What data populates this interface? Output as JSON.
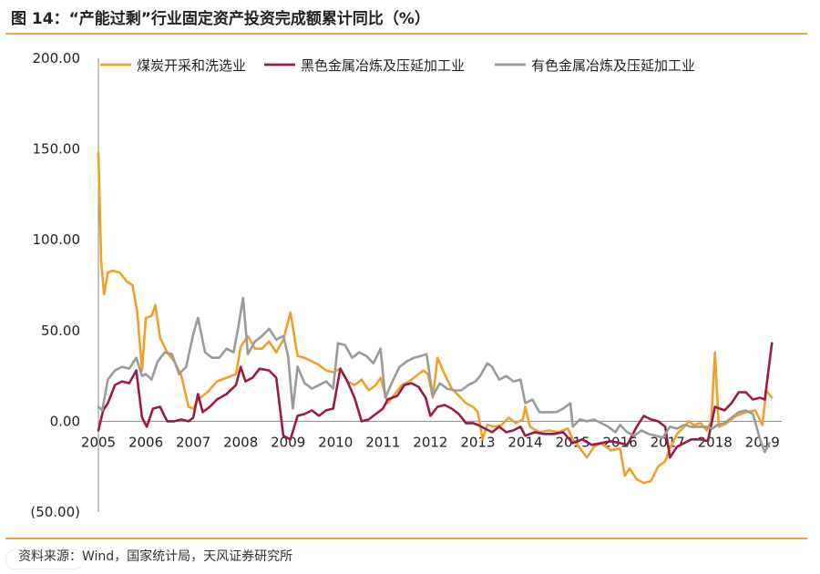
{
  "header": {
    "title": "图 14：“产能过剩”行业固定资产投资完成额累计同比（%）"
  },
  "footer": {
    "source": "资料来源：Wind，国家统计局，天风证券研究所"
  },
  "chart_data": {
    "type": "line",
    "title": "“产能过剩”行业固定资产投资完成额累计同比（%）",
    "xlabel": "",
    "ylabel": "",
    "xlim": [
      2005,
      2019.35
    ],
    "ylim": [
      -50,
      200
    ],
    "yticks": [
      200,
      150,
      100,
      50,
      0,
      -50
    ],
    "ytick_labels": [
      "200.00",
      "150.00",
      "100.00",
      "50.00",
      "0.00",
      "(50.00)"
    ],
    "xticks": [
      2005,
      2006,
      2007,
      2008,
      2009,
      2010,
      2011,
      2012,
      2013,
      2014,
      2015,
      2016,
      2017,
      2018,
      2019
    ],
    "xtick_labels": [
      "2005",
      "2006",
      "2007",
      "2008",
      "2009",
      "2010",
      "2011",
      "2012",
      "2013",
      "2014",
      "2015",
      "2016",
      "2017",
      "2018",
      "2019"
    ],
    "legend_position": "top",
    "series": [
      {
        "name": "煤炭开采和洗选业",
        "color": "#f0a02a",
        "points": [
          [
            2005.0,
            148
          ],
          [
            2005.06,
            88
          ],
          [
            2005.12,
            70
          ],
          [
            2005.2,
            82
          ],
          [
            2005.3,
            83
          ],
          [
            2005.45,
            82
          ],
          [
            2005.6,
            77
          ],
          [
            2005.72,
            75
          ],
          [
            2005.82,
            60
          ],
          [
            2005.92,
            28
          ],
          [
            2006.0,
            57
          ],
          [
            2006.12,
            58
          ],
          [
            2006.2,
            64
          ],
          [
            2006.3,
            46
          ],
          [
            2006.45,
            38
          ],
          [
            2006.6,
            33
          ],
          [
            2006.75,
            25
          ],
          [
            2006.9,
            8
          ],
          [
            2007.0,
            7
          ],
          [
            2007.1,
            12
          ],
          [
            2007.3,
            16
          ],
          [
            2007.5,
            22
          ],
          [
            2007.7,
            24
          ],
          [
            2007.9,
            26
          ],
          [
            2008.0,
            41
          ],
          [
            2008.15,
            47
          ],
          [
            2008.3,
            40
          ],
          [
            2008.45,
            40
          ],
          [
            2008.6,
            44
          ],
          [
            2008.75,
            38
          ],
          [
            2008.9,
            45
          ],
          [
            2009.05,
            60
          ],
          [
            2009.2,
            36
          ],
          [
            2009.35,
            35
          ],
          [
            2009.5,
            33
          ],
          [
            2009.65,
            31
          ],
          [
            2009.8,
            28
          ],
          [
            2009.95,
            27
          ],
          [
            2010.1,
            29
          ],
          [
            2010.25,
            22
          ],
          [
            2010.4,
            20
          ],
          [
            2010.55,
            23
          ],
          [
            2010.7,
            17
          ],
          [
            2010.85,
            20
          ],
          [
            2010.95,
            24
          ],
          [
            2011.1,
            10
          ],
          [
            2011.25,
            15
          ],
          [
            2011.4,
            20
          ],
          [
            2011.55,
            22
          ],
          [
            2011.7,
            25
          ],
          [
            2011.85,
            28
          ],
          [
            2011.95,
            26
          ],
          [
            2012.05,
            13
          ],
          [
            2012.15,
            35
          ],
          [
            2012.3,
            26
          ],
          [
            2012.45,
            18
          ],
          [
            2012.6,
            14
          ],
          [
            2012.75,
            10
          ],
          [
            2012.9,
            8
          ],
          [
            2013.0,
            5
          ],
          [
            2013.1,
            -10
          ],
          [
            2013.2,
            -2
          ],
          [
            2013.35,
            -3
          ],
          [
            2013.5,
            -2
          ],
          [
            2013.65,
            2
          ],
          [
            2013.8,
            -1
          ],
          [
            2013.95,
            1
          ],
          [
            2014.0,
            8
          ],
          [
            2014.1,
            -3
          ],
          [
            2014.3,
            -6
          ],
          [
            2014.5,
            -5
          ],
          [
            2014.7,
            -6
          ],
          [
            2014.9,
            -4
          ],
          [
            2015.0,
            -10
          ],
          [
            2015.1,
            -13
          ],
          [
            2015.3,
            -20
          ],
          [
            2015.45,
            -14
          ],
          [
            2015.6,
            -12
          ],
          [
            2015.8,
            -16
          ],
          [
            2016.0,
            -15
          ],
          [
            2016.1,
            -30
          ],
          [
            2016.2,
            -26
          ],
          [
            2016.35,
            -32
          ],
          [
            2016.5,
            -34
          ],
          [
            2016.65,
            -33
          ],
          [
            2016.8,
            -25
          ],
          [
            2016.95,
            -22
          ],
          [
            2017.05,
            -15
          ],
          [
            2017.2,
            -7
          ],
          [
            2017.35,
            -3
          ],
          [
            2017.45,
            0
          ],
          [
            2017.55,
            -2
          ],
          [
            2017.7,
            -1
          ],
          [
            2017.82,
            -5
          ],
          [
            2017.92,
            0
          ],
          [
            2018.0,
            38
          ],
          [
            2018.08,
            -3
          ],
          [
            2018.25,
            -1
          ],
          [
            2018.45,
            3
          ],
          [
            2018.65,
            5
          ],
          [
            2018.85,
            6
          ],
          [
            2019.0,
            -2
          ],
          [
            2019.08,
            17
          ],
          [
            2019.2,
            13
          ]
        ]
      },
      {
        "name": "黑色金属冶炼及压延加工业",
        "color": "#9b1a48",
        "points": [
          [
            2005.0,
            -5
          ],
          [
            2005.1,
            6
          ],
          [
            2005.2,
            10
          ],
          [
            2005.35,
            20
          ],
          [
            2005.5,
            22
          ],
          [
            2005.65,
            21
          ],
          [
            2005.8,
            28
          ],
          [
            2005.92,
            2
          ],
          [
            2006.02,
            -3
          ],
          [
            2006.15,
            7
          ],
          [
            2006.3,
            8
          ],
          [
            2006.45,
            0
          ],
          [
            2006.6,
            0
          ],
          [
            2006.75,
            1
          ],
          [
            2006.9,
            0
          ],
          [
            2007.0,
            2
          ],
          [
            2007.1,
            15
          ],
          [
            2007.2,
            5
          ],
          [
            2007.35,
            8
          ],
          [
            2007.5,
            12
          ],
          [
            2007.7,
            15
          ],
          [
            2007.9,
            20
          ],
          [
            2008.0,
            30
          ],
          [
            2008.1,
            22
          ],
          [
            2008.25,
            24
          ],
          [
            2008.4,
            29
          ],
          [
            2008.6,
            28
          ],
          [
            2008.75,
            24
          ],
          [
            2008.9,
            -8
          ],
          [
            2009.05,
            -10
          ],
          [
            2009.2,
            3
          ],
          [
            2009.35,
            4
          ],
          [
            2009.5,
            6
          ],
          [
            2009.65,
            3
          ],
          [
            2009.8,
            6
          ],
          [
            2009.95,
            7
          ],
          [
            2010.1,
            29
          ],
          [
            2010.25,
            22
          ],
          [
            2010.4,
            13
          ],
          [
            2010.55,
            0
          ],
          [
            2010.7,
            1
          ],
          [
            2010.85,
            4
          ],
          [
            2011.0,
            7
          ],
          [
            2011.1,
            12
          ],
          [
            2011.3,
            14
          ],
          [
            2011.45,
            20
          ],
          [
            2011.6,
            21
          ],
          [
            2011.75,
            19
          ],
          [
            2011.9,
            13
          ],
          [
            2012.0,
            3
          ],
          [
            2012.15,
            8
          ],
          [
            2012.3,
            9
          ],
          [
            2012.45,
            7
          ],
          [
            2012.6,
            4
          ],
          [
            2012.75,
            -1
          ],
          [
            2012.9,
            -1
          ],
          [
            2013.0,
            -2
          ],
          [
            2013.15,
            -4
          ],
          [
            2013.3,
            -6
          ],
          [
            2013.45,
            -3
          ],
          [
            2013.6,
            -6
          ],
          [
            2013.75,
            -5
          ],
          [
            2013.9,
            -3
          ],
          [
            2014.0,
            -8
          ],
          [
            2014.2,
            -6
          ],
          [
            2014.4,
            -7
          ],
          [
            2014.6,
            -7
          ],
          [
            2014.8,
            -6
          ],
          [
            2015.0,
            -12
          ],
          [
            2015.2,
            -10
          ],
          [
            2015.4,
            -13
          ],
          [
            2015.6,
            -12
          ],
          [
            2015.8,
            -11
          ],
          [
            2016.0,
            -12
          ],
          [
            2016.15,
            -13
          ],
          [
            2016.35,
            -3
          ],
          [
            2016.5,
            3
          ],
          [
            2016.65,
            1
          ],
          [
            2016.8,
            0
          ],
          [
            2016.95,
            -3
          ],
          [
            2017.05,
            -20
          ],
          [
            2017.2,
            -14
          ],
          [
            2017.35,
            -12
          ],
          [
            2017.5,
            -10
          ],
          [
            2017.7,
            -10
          ],
          [
            2017.85,
            -11
          ],
          [
            2018.0,
            8
          ],
          [
            2018.2,
            6
          ],
          [
            2018.35,
            10
          ],
          [
            2018.5,
            16
          ],
          [
            2018.65,
            16
          ],
          [
            2018.8,
            12
          ],
          [
            2018.95,
            13
          ],
          [
            2019.05,
            12
          ],
          [
            2019.2,
            43
          ]
        ]
      },
      {
        "name": "有色金属冶炼及压延加工业",
        "color": "#9a9a9a",
        "points": [
          [
            2005.0,
            8
          ],
          [
            2005.08,
            6
          ],
          [
            2005.2,
            23
          ],
          [
            2005.35,
            28
          ],
          [
            2005.5,
            30
          ],
          [
            2005.65,
            29
          ],
          [
            2005.8,
            35
          ],
          [
            2005.92,
            25
          ],
          [
            2006.0,
            26
          ],
          [
            2006.12,
            23
          ],
          [
            2006.25,
            33
          ],
          [
            2006.4,
            38
          ],
          [
            2006.55,
            37
          ],
          [
            2006.7,
            26
          ],
          [
            2006.85,
            30
          ],
          [
            2007.0,
            48
          ],
          [
            2007.1,
            57
          ],
          [
            2007.25,
            38
          ],
          [
            2007.4,
            35
          ],
          [
            2007.55,
            35
          ],
          [
            2007.7,
            40
          ],
          [
            2007.85,
            38
          ],
          [
            2007.95,
            52
          ],
          [
            2008.05,
            68
          ],
          [
            2008.15,
            37
          ],
          [
            2008.3,
            44
          ],
          [
            2008.45,
            47
          ],
          [
            2008.6,
            51
          ],
          [
            2008.75,
            45
          ],
          [
            2008.9,
            47
          ],
          [
            2009.0,
            36
          ],
          [
            2009.1,
            7
          ],
          [
            2009.2,
            30
          ],
          [
            2009.35,
            21
          ],
          [
            2009.5,
            18
          ],
          [
            2009.65,
            20
          ],
          [
            2009.8,
            22
          ],
          [
            2009.95,
            18
          ],
          [
            2010.05,
            43
          ],
          [
            2010.2,
            42
          ],
          [
            2010.35,
            35
          ],
          [
            2010.5,
            38
          ],
          [
            2010.65,
            36
          ],
          [
            2010.8,
            32
          ],
          [
            2010.95,
            40
          ],
          [
            2011.05,
            13
          ],
          [
            2011.2,
            22
          ],
          [
            2011.35,
            30
          ],
          [
            2011.5,
            33
          ],
          [
            2011.65,
            35
          ],
          [
            2011.8,
            36
          ],
          [
            2011.92,
            37
          ],
          [
            2012.05,
            14
          ],
          [
            2012.2,
            21
          ],
          [
            2012.35,
            18
          ],
          [
            2012.5,
            17
          ],
          [
            2012.65,
            17
          ],
          [
            2012.8,
            20
          ],
          [
            2012.95,
            22
          ],
          [
            2013.05,
            25
          ],
          [
            2013.2,
            32
          ],
          [
            2013.3,
            30
          ],
          [
            2013.45,
            23
          ],
          [
            2013.6,
            25
          ],
          [
            2013.75,
            22
          ],
          [
            2013.9,
            23
          ],
          [
            2014.0,
            10
          ],
          [
            2014.15,
            12
          ],
          [
            2014.3,
            5
          ],
          [
            2014.5,
            5
          ],
          [
            2014.65,
            5
          ],
          [
            2014.8,
            7
          ],
          [
            2014.95,
            10
          ],
          [
            2015.0,
            -3
          ],
          [
            2015.15,
            1
          ],
          [
            2015.3,
            0
          ],
          [
            2015.45,
            1
          ],
          [
            2015.6,
            -1
          ],
          [
            2015.75,
            -3
          ],
          [
            2015.9,
            -6
          ],
          [
            2016.0,
            -2
          ],
          [
            2016.15,
            -6
          ],
          [
            2016.3,
            -8
          ],
          [
            2016.45,
            -5
          ],
          [
            2016.6,
            -7
          ],
          [
            2016.75,
            -8
          ],
          [
            2016.9,
            -9
          ],
          [
            2017.05,
            -3
          ],
          [
            2017.2,
            -4
          ],
          [
            2017.35,
            -2
          ],
          [
            2017.5,
            -3
          ],
          [
            2017.65,
            -3
          ],
          [
            2017.8,
            -3
          ],
          [
            2017.95,
            -4
          ],
          [
            2018.05,
            -2
          ],
          [
            2018.2,
            -1
          ],
          [
            2018.35,
            2
          ],
          [
            2018.5,
            5
          ],
          [
            2018.65,
            6
          ],
          [
            2018.8,
            4
          ],
          [
            2018.95,
            -10
          ],
          [
            2019.05,
            -17
          ],
          [
            2019.15,
            -12
          ]
        ]
      }
    ]
  }
}
